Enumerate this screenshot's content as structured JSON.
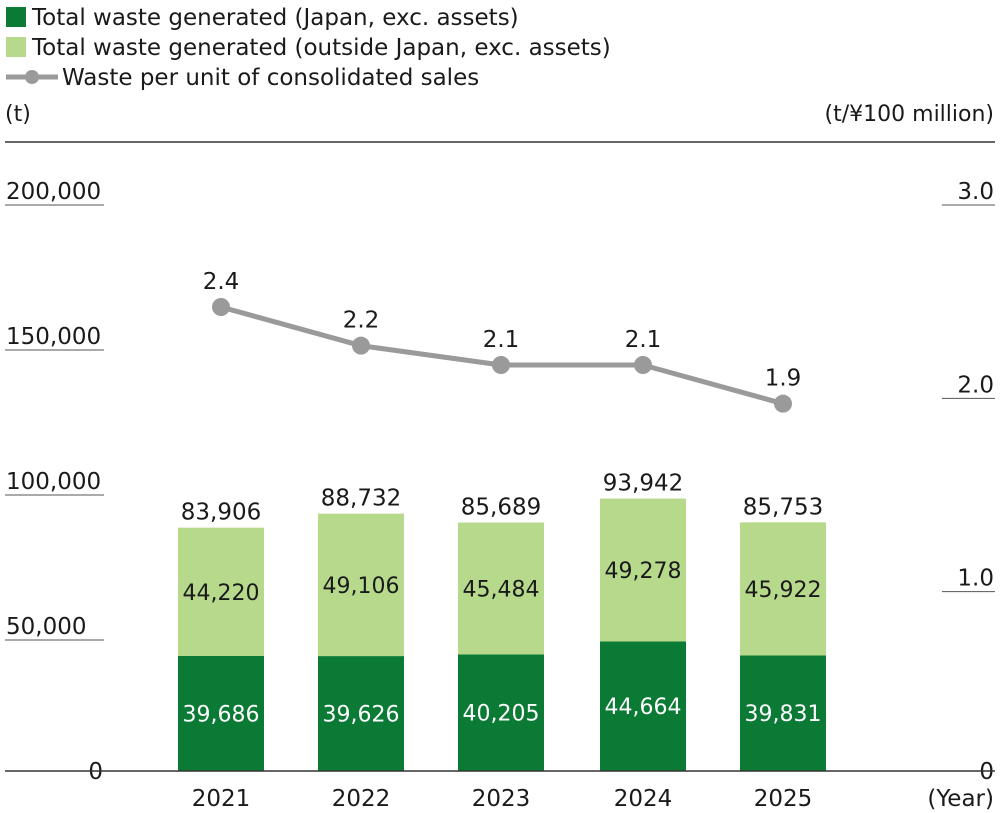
{
  "chart_data": {
    "type": "bar",
    "subtype": "stacked-bar-with-line",
    "legend": [
      {
        "label": "Total waste generated (Japan, exc. assets)",
        "color": "#0a7a35",
        "kind": "square"
      },
      {
        "label": "Total waste generated (outside Japan, exc. assets)",
        "color": "#b6d98c",
        "kind": "square"
      },
      {
        "label": "Waste per unit of consolidated sales",
        "color": "#9a9a9a",
        "kind": "line"
      }
    ],
    "legend_position": "top-left",
    "left_axis": {
      "unit": "(t)",
      "ticks": [
        "200,000",
        "150,000",
        "100,000",
        "50,000",
        "0"
      ],
      "tick_values": [
        200000,
        150000,
        100000,
        50000,
        0
      ],
      "ylim": [
        0,
        200000
      ]
    },
    "right_axis": {
      "unit": "(t/¥100 million)",
      "ticks": [
        "3.0",
        "2.0",
        "1.0",
        "0"
      ],
      "tick_values": [
        3.0,
        2.0,
        1.0,
        0
      ],
      "ylim": [
        0,
        3.5
      ]
    },
    "x_axis": {
      "unit": "(Year)"
    },
    "categories": [
      "2021",
      "2022",
      "2023",
      "2024",
      "2025"
    ],
    "series": [
      {
        "name": "Total waste generated (Japan, exc. assets)",
        "axis": "left",
        "type": "bar",
        "color": "#0a7a35",
        "values": [
          39686,
          39626,
          40205,
          44664,
          39831
        ],
        "labels": [
          "39,686",
          "39,626",
          "40,205",
          "44,664",
          "39,831"
        ]
      },
      {
        "name": "Total waste generated (outside Japan, exc. assets)",
        "axis": "left",
        "type": "bar",
        "color": "#b6d98c",
        "values": [
          44220,
          49106,
          45484,
          49278,
          45922
        ],
        "labels": [
          "44,220",
          "49,106",
          "45,484",
          "49,278",
          "45,922"
        ]
      },
      {
        "name": "Waste per unit of consolidated sales",
        "axis": "right",
        "type": "line",
        "color": "#9a9a9a",
        "values": [
          2.4,
          2.2,
          2.1,
          2.1,
          1.9
        ],
        "labels": [
          "2.4",
          "2.2",
          "2.1",
          "2.1",
          "1.9"
        ]
      }
    ],
    "totals": [
      83906,
      88732,
      85689,
      93942,
      85753
    ],
    "total_labels": [
      "83,906",
      "88,732",
      "85,689",
      "93,942",
      "85,753"
    ]
  }
}
